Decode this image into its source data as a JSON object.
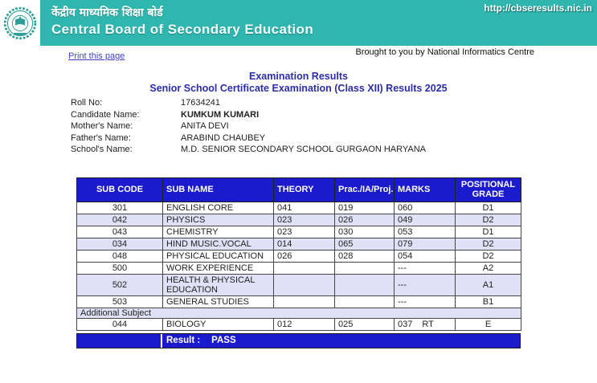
{
  "header": {
    "url": "http://cbseresults.nic.in",
    "title_hindi": "केंद्रीय माध्यमिक शिक्षा बोर्ड",
    "title_english": "Central Board of Secondary Education"
  },
  "subheader": {
    "print_link": "Print this page",
    "brought_by": "Brought to you by National Informatics Centre"
  },
  "titles": {
    "main": "Examination Results",
    "sub": "Senior School Certificate Examination (Class XII) Results 2025"
  },
  "candidate": {
    "fields": [
      {
        "label": "Roll No:",
        "value": "17634241",
        "bold": false
      },
      {
        "label": "Candidate Name:",
        "value": "KUMKUM KUMARI",
        "bold": true
      },
      {
        "label": "Mother's Name:",
        "value": "ANITA DEVI",
        "bold": false
      },
      {
        "label": "Father's Name:",
        "value": "ARABIND CHAUBEY",
        "bold": false
      },
      {
        "label": "School's Name:",
        "value": "M.D. SENIOR SECONDARY SCHOOL GURGAON HARYANA",
        "bold": false
      }
    ]
  },
  "results_table": {
    "columns": [
      "SUB CODE",
      "SUB NAME",
      "THEORY",
      "Prac./IA/Proj.",
      "MARKS",
      "POSITIONAL GRADE"
    ],
    "rows": [
      {
        "code": "301",
        "name": "ENGLISH CORE",
        "theory": "041",
        "prac": "019",
        "marks": "060",
        "remark": "",
        "grade": "D1",
        "shaded": false
      },
      {
        "code": "042",
        "name": "PHYSICS",
        "theory": "023",
        "prac": "026",
        "marks": "049",
        "remark": "",
        "grade": "D2",
        "shaded": true
      },
      {
        "code": "043",
        "name": "CHEMISTRY",
        "theory": "023",
        "prac": "030",
        "marks": "053",
        "remark": "",
        "grade": "D1",
        "shaded": false
      },
      {
        "code": "034",
        "name": "HIND MUSIC.VOCAL",
        "theory": "014",
        "prac": "065",
        "marks": "079",
        "remark": "",
        "grade": "D2",
        "shaded": true
      },
      {
        "code": "048",
        "name": "PHYSICAL EDUCATION",
        "theory": "026",
        "prac": "028",
        "marks": "054",
        "remark": "",
        "grade": "D2",
        "shaded": false
      },
      {
        "code": "500",
        "name": "WORK EXPERIENCE",
        "theory": "",
        "prac": "",
        "marks": "---",
        "remark": "",
        "grade": "A2",
        "shaded": false
      },
      {
        "code": "502",
        "name": "HEALTH & PHYSICAL EDUCATION",
        "theory": "",
        "prac": "",
        "marks": "---",
        "remark": "",
        "grade": "A1",
        "shaded": true
      },
      {
        "code": "503",
        "name": "GENERAL STUDIES",
        "theory": "",
        "prac": "",
        "marks": "---",
        "remark": "",
        "grade": "B1",
        "shaded": false
      }
    ],
    "additional_subject_label": "Additional Subject",
    "additional_rows": [
      {
        "code": "044",
        "name": "BIOLOGY",
        "theory": "012",
        "prac": "025",
        "marks": "037",
        "remark": "RT",
        "grade": "E",
        "shaded": false
      }
    ],
    "result_label": "Result :",
    "result_value": "PASS"
  },
  "colors": {
    "header_teal": "#2eb6af",
    "table_blue": "#1c1acd",
    "row_shaded": "#e0e0f7"
  }
}
